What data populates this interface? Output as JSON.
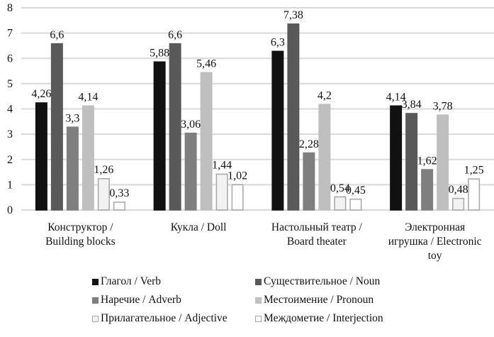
{
  "chart_data": {
    "type": "bar",
    "title": "",
    "xlabel": "",
    "ylabel": "",
    "ylim": [
      0,
      8
    ],
    "yticks": [
      "0",
      "1",
      "2",
      "3",
      "4",
      "5",
      "6",
      "7",
      "8"
    ],
    "grid": true,
    "legend_position": "bottom",
    "categories": [
      [
        "Конструктор /",
        "Building blocks"
      ],
      [
        "Кукла / Doll"
      ],
      [
        "Настольный театр /",
        "Board theater"
      ],
      [
        "Электронная",
        "игрушка / Electronic",
        "toy"
      ]
    ],
    "series": [
      {
        "name": "Глагол / Verb",
        "color": "#111111",
        "border": "#111111",
        "values": [
          4.26,
          5.88,
          6.3,
          4.14
        ],
        "labels": [
          "4,26",
          "5,88",
          "6,3",
          "4,14"
        ]
      },
      {
        "name": "Существительное / Noun",
        "color": "#595959",
        "border": "#595959",
        "values": [
          6.6,
          6.6,
          7.38,
          3.84
        ],
        "labels": [
          "6,6",
          "6,6",
          "7,38",
          "3,84"
        ]
      },
      {
        "name": "Наречие / Adverb",
        "color": "#7f7f7f",
        "border": "#7f7f7f",
        "values": [
          3.3,
          3.06,
          2.28,
          1.62
        ],
        "labels": [
          "3,3",
          "3,06",
          "2,28",
          "1,62"
        ]
      },
      {
        "name": "Местоимение / Pronoun",
        "color": "#bfbfbf",
        "border": "#bfbfbf",
        "values": [
          4.14,
          5.46,
          4.2,
          3.78
        ],
        "labels": [
          "4,14",
          "5,46",
          "4,2",
          "3,78"
        ]
      },
      {
        "name": "Прилагательное / Adjective",
        "color": "#f2f2f2",
        "border": "#a6a6a6",
        "values": [
          1.26,
          1.44,
          0.54,
          0.48
        ],
        "labels": [
          "1,26",
          "1,44",
          "0,54",
          "0,48"
        ]
      },
      {
        "name": "Междометие / Interjection",
        "color": "#ffffff",
        "border": "#a6a6a6",
        "values": [
          0.33,
          1.02,
          0.45,
          1.25
        ],
        "labels": [
          "0,33",
          "1,02",
          "0,45",
          "1,25"
        ]
      }
    ]
  }
}
